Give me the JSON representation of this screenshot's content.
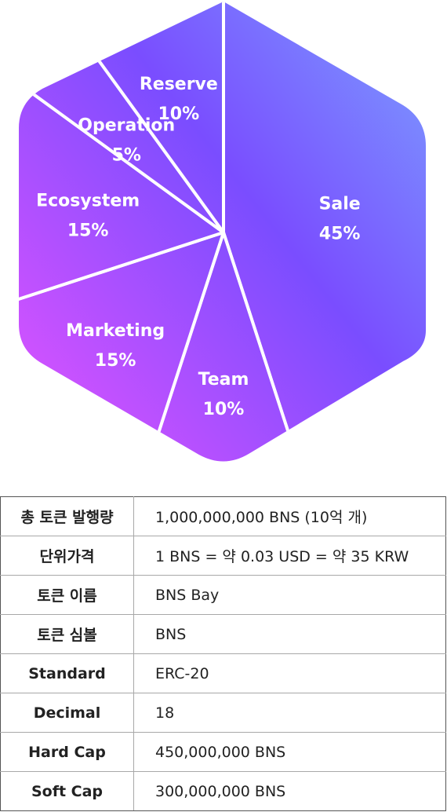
{
  "chart_data": {
    "type": "pie",
    "shape": "hexagon",
    "slices": [
      {
        "label": "Sale",
        "value": 45,
        "value_label": "45%"
      },
      {
        "label": "Team",
        "value": 10,
        "value_label": "10%"
      },
      {
        "label": "Marketing",
        "value": 15,
        "value_label": "15%"
      },
      {
        "label": "Ecosystem",
        "value": 15,
        "value_label": "15%"
      },
      {
        "label": "Operation",
        "value": 5,
        "value_label": "5%"
      },
      {
        "label": "Reserve",
        "value": 10,
        "value_label": "10%"
      }
    ],
    "colors": {
      "gradient_start": "#7b96ff",
      "gradient_mid": "#7a4dff",
      "gradient_end": "#cf52ff",
      "divider": "#ffffff"
    }
  },
  "token_table": {
    "rows": [
      {
        "key": "총 토큰 발행량",
        "value": "1,000,000,000 BNS (10억 개)"
      },
      {
        "key": "단위가격",
        "value": "1 BNS = 약 0.03 USD = 약 35 KRW"
      },
      {
        "key": "토큰 이름",
        "value": "BNS Bay"
      },
      {
        "key": "토큰 심볼",
        "value": "BNS"
      },
      {
        "key": "Standard",
        "value": "ERC-20"
      },
      {
        "key": "Decimal",
        "value": "18"
      },
      {
        "key": "Hard Cap",
        "value": "450,000,000 BNS"
      },
      {
        "key": "Soft Cap",
        "value": "300,000,000 BNS"
      }
    ]
  }
}
